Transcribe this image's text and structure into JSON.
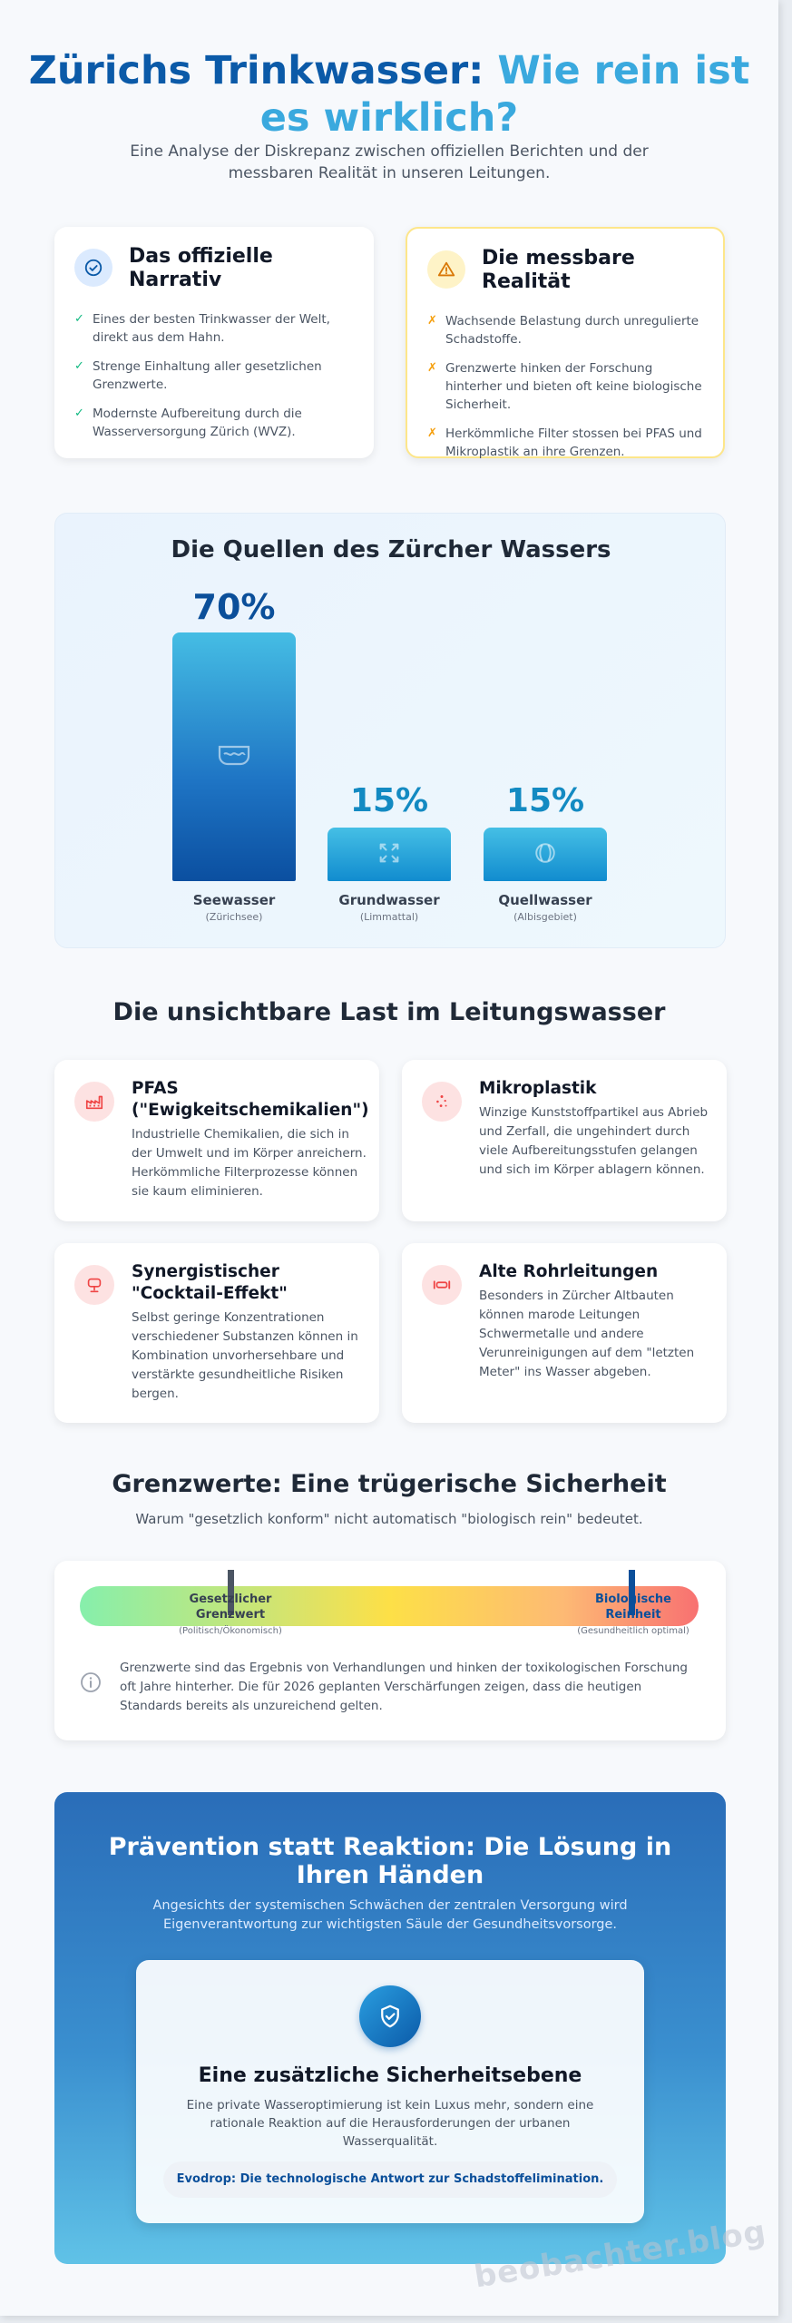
{
  "header": {
    "title_part1": "Zürichs Trinkwasser:",
    "title_part2": "Wie rein ist es wirklich?",
    "subtitle": "Eine Analyse der Diskrepanz zwischen offiziellen Berichten und der messbaren Realität in unseren Leitungen."
  },
  "official": {
    "title": "Das offizielle Narrativ",
    "icon": "check-circle-icon",
    "items": [
      "Eines der besten Trinkwasser der Welt, direkt aus dem Hahn.",
      "Strenge Einhaltung aller gesetzlichen Grenzwerte.",
      "Modernste Aufbereitung durch die Wasserversorgung Zürich (WVZ)."
    ]
  },
  "reality": {
    "title": "Die messbare Realität",
    "icon": "warning-triangle-icon",
    "items": [
      "Wachsende Belastung durch unregulierte Schadstoffe.",
      "Grenzwerte hinken der Forschung hinterher und bieten oft keine biologische Sicherheit.",
      "Herkömmliche Filter stossen bei PFAS und Mikroplastik an ihre Grenzen."
    ]
  },
  "sources": {
    "title": "Die Quellen des Zürcher Wassers",
    "bars": [
      {
        "value_label": "70%",
        "label": "Seewasser",
        "sub": "(Zürichsee)"
      },
      {
        "value_label": "15%",
        "label": "Grundwasser",
        "sub": "(Limmattal)"
      },
      {
        "value_label": "15%",
        "label": "Quellwasser",
        "sub": "(Albisgebiet)"
      }
    ]
  },
  "chart_data": {
    "type": "bar",
    "categories": [
      "Seewasser",
      "Grundwasser",
      "Quellwasser"
    ],
    "values": [
      70,
      15,
      15
    ],
    "title": "Die Quellen des Zürcher Wassers",
    "xlabel": "",
    "ylabel": "",
    "ylim": [
      0,
      70
    ]
  },
  "load": {
    "title": "Die unsichtbare Last im Leitungswasser",
    "cards": [
      {
        "title": "PFAS (\"Ewigkeitschemikalien\")",
        "icon": "factory-icon",
        "text": "Industrielle Chemikalien, die sich in der Umwelt und im Körper anreichern. Herkömmliche Filterprozesse können sie kaum eliminieren."
      },
      {
        "title": "Mikroplastik",
        "icon": "particles-icon",
        "text": "Winzige Kunststoffpartikel aus Abrieb und Zerfall, die ungehindert durch viele Aufbereitungsstufen gelangen und sich im Körper ablagern können."
      },
      {
        "title": "Synergistischer \"Cocktail-Effekt\"",
        "icon": "cocktail-icon",
        "text": "Selbst geringe Konzentrationen verschiedener Substanzen können in Kombination unvorhersehbare und verstärkte gesundheitliche Risiken bergen."
      },
      {
        "title": "Alte Rohrleitungen",
        "icon": "pipe-icon",
        "text": "Besonders in Zürcher Altbauten können marode Leitungen Schwermetalle und andere Verunreinigungen auf dem \"letzten Meter\" ins Wasser abgeben."
      }
    ]
  },
  "limits": {
    "title": "Grenzwerte: Eine trügerische Sicherheit",
    "subtitle": "Warum \"gesetzlich konform\" nicht automatisch \"biologisch rein\" bedeutet.",
    "legal": {
      "label": "Gesetzlicher Grenzwert",
      "sub": "(Politisch/Ökonomisch)",
      "color": "#4b5563"
    },
    "bio": {
      "label": "Biologische Reinheit",
      "sub": "(Gesundheitlich optimal)",
      "color": "#0b4f9a"
    },
    "info": "Grenzwerte sind das Ergebnis von Verhandlungen und hinken der toxikologischen Forschung oft Jahre hinterher. Die für 2026 geplanten Verschärfungen zeigen, dass die heutigen Standards bereits als unzureichend gelten."
  },
  "prevention": {
    "title": "Prävention statt Reaktion: Die Lösung in Ihren Händen",
    "subtitle": "Angesichts der systemischen Schwächen der zentralen Versorgung wird Eigenverantwortung zur wichtigsten Säule der Gesundheitsvorsorge.",
    "inner_title": "Eine zusätzliche Sicherheitsebene",
    "inner_text": "Eine private Wasseroptimierung ist kein Luxus mehr, sondern eine rationale Reaktion auf die Herausforderungen der urbanen Wasserqualität.",
    "pill": "Evodrop: Die technologische Antwort zur Schadstoffelimination."
  },
  "watermark": "beobachter.blog"
}
